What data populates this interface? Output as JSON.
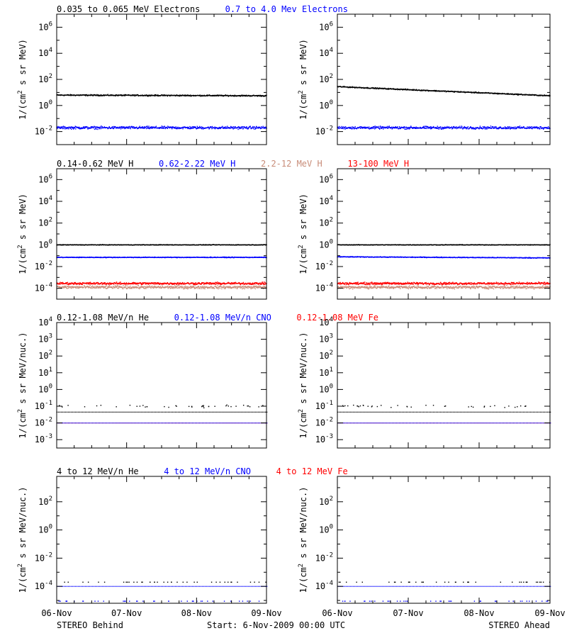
{
  "footer": {
    "left": "STEREO Behind",
    "center": "Start:  6-Nov-2009 00:00 UTC",
    "right": "STEREO Ahead"
  },
  "colors": {
    "black": "#000000",
    "blue": "#0000ff",
    "tan": "#c88c78",
    "red": "#ff0000"
  },
  "chart_data": [
    {
      "type": "scatter",
      "panel": "electrons-behind",
      "yscale": "log",
      "ylim_log10": [
        -3,
        7
      ],
      "yticks_log10": [
        -2,
        0,
        2,
        4,
        6
      ],
      "ytick_labels": [
        "10^-2",
        "10^0",
        "10^2",
        "10^4",
        "10^6"
      ],
      "ylabel": "1/(cm^2 s sr MeV)",
      "xlim_days": [
        0,
        3
      ],
      "x_tick_labels": [
        "06-Nov",
        "07-Nov",
        "08-Nov",
        "09-Nov"
      ],
      "legend": [
        {
          "text": "0.035 to 0.065 MeV Electrons",
          "color": "#000000"
        },
        {
          "text": "0.7 to 4.0 Mev Electrons",
          "color": "#0000ff"
        }
      ],
      "series": [
        {
          "color": "#000000",
          "y_log10_start": 0.8,
          "y_log10_end": 0.75,
          "scatter": 0.07
        },
        {
          "color": "#0000ff",
          "y_log10_start": -1.7,
          "y_log10_end": -1.7,
          "scatter": 0.15
        }
      ]
    },
    {
      "type": "scatter",
      "panel": "electrons-ahead",
      "yscale": "log",
      "ylim_log10": [
        -3,
        7
      ],
      "yticks_log10": [
        -2,
        0,
        2,
        4,
        6
      ],
      "ytick_labels": [
        "10^-2",
        "10^0",
        "10^2",
        "10^4",
        "10^6"
      ],
      "ylabel": "1/(cm^2 s sr MeV)",
      "xlim_days": [
        0,
        3
      ],
      "x_tick_labels": [
        "06-Nov",
        "07-Nov",
        "08-Nov",
        "09-Nov"
      ],
      "legend": [],
      "series": [
        {
          "color": "#000000",
          "y_log10_start": 1.45,
          "y_log10_end": 0.75,
          "scatter": 0.06
        },
        {
          "color": "#0000ff",
          "y_log10_start": -1.7,
          "y_log10_end": -1.7,
          "scatter": 0.15
        }
      ]
    },
    {
      "type": "scatter",
      "panel": "protons-behind",
      "yscale": "log",
      "ylim_log10": [
        -5,
        7
      ],
      "yticks_log10": [
        -4,
        -2,
        0,
        2,
        4,
        6
      ],
      "ytick_labels": [
        "10^-4",
        "10^-2",
        "10^0",
        "10^2",
        "10^4",
        "10^6"
      ],
      "ylabel": "1/(cm^2 s sr MeV)",
      "xlim_days": [
        0,
        3
      ],
      "x_tick_labels": [
        "06-Nov",
        "07-Nov",
        "08-Nov",
        "09-Nov"
      ],
      "legend": [
        {
          "text": "0.14-0.62 MeV H",
          "color": "#000000"
        },
        {
          "text": "0.62-2.22 MeV H",
          "color": "#0000ff"
        },
        {
          "text": "2.2-12 MeV H",
          "color": "#c88c78"
        },
        {
          "text": "13-100 MeV H",
          "color": "#ff0000"
        }
      ],
      "series": [
        {
          "color": "#c88c78",
          "y_log10_start": -3.9,
          "y_log10_end": -3.9,
          "scatter": 0.2
        },
        {
          "color": "#ff0000",
          "y_log10_start": -3.55,
          "y_log10_end": -3.55,
          "scatter": 0.15
        },
        {
          "color": "#0000ff",
          "y_log10_start": -1.15,
          "y_log10_end": -1.15,
          "scatter": 0.05
        },
        {
          "color": "#000000",
          "y_log10_start": 0.0,
          "y_log10_end": 0.0,
          "scatter": 0.04
        }
      ]
    },
    {
      "type": "scatter",
      "panel": "protons-ahead",
      "yscale": "log",
      "ylim_log10": [
        -5,
        7
      ],
      "yticks_log10": [
        -4,
        -2,
        0,
        2,
        4,
        6
      ],
      "ytick_labels": [
        "10^-4",
        "10^-2",
        "10^0",
        "10^2",
        "10^4",
        "10^6"
      ],
      "ylabel": "1/(cm^2 s sr MeV)",
      "xlim_days": [
        0,
        3
      ],
      "x_tick_labels": [
        "06-Nov",
        "07-Nov",
        "08-Nov",
        "09-Nov"
      ],
      "legend": [],
      "series": [
        {
          "color": "#c88c78",
          "y_log10_start": -3.9,
          "y_log10_end": -3.9,
          "scatter": 0.2
        },
        {
          "color": "#ff0000",
          "y_log10_start": -3.55,
          "y_log10_end": -3.55,
          "scatter": 0.15
        },
        {
          "color": "#0000ff",
          "y_log10_start": -1.1,
          "y_log10_end": -1.2,
          "scatter": 0.05
        },
        {
          "color": "#000000",
          "y_log10_start": 0.0,
          "y_log10_end": 0.0,
          "scatter": 0.04
        }
      ]
    },
    {
      "type": "scatter",
      "panel": "low-energy-ions-behind",
      "yscale": "log",
      "ylim_log10": [
        -3.5,
        4
      ],
      "yticks_log10": [
        -3,
        -2,
        -1,
        0,
        1,
        2,
        3,
        4
      ],
      "ytick_labels": [
        "10^-3",
        "10^-2",
        "10^-1",
        "10^0",
        "10^1",
        "10^2",
        "10^3",
        "10^4"
      ],
      "ylabel": "1/(cm^2 s sr MeV/nuc.)",
      "xlim_days": [
        0,
        3
      ],
      "x_tick_labels": [
        "06-Nov",
        "07-Nov",
        "08-Nov",
        "09-Nov"
      ],
      "legend": [
        {
          "text": "0.12-1.08 MeV/n He",
          "color": "#000000"
        },
        {
          "text": "0.12-1.08 MeV/n CNO",
          "color": "#0000ff"
        },
        {
          "text": "0.12-1.08 MeV Fe",
          "color": "#ff0000"
        }
      ],
      "series": [
        {
          "color": "#ff0000",
          "y_log10_start": -2.0,
          "y_log10_end": -2.0,
          "scatter": 0.0,
          "style": "dash"
        },
        {
          "color": "#0000ff",
          "y_log10_start": -2.0,
          "y_log10_end": -2.0,
          "scatter": 0.0,
          "style": "dash"
        },
        {
          "color": "#000000",
          "y_log10_start": -1.35,
          "y_log10_end": -1.35,
          "scatter": 0.0,
          "style": "dash"
        },
        {
          "color": "#000000",
          "y_log10_start": -1.0,
          "y_log10_end": -1.0,
          "scatter": 0.1,
          "style": "sparse"
        }
      ]
    },
    {
      "type": "scatter",
      "panel": "low-energy-ions-ahead",
      "yscale": "log",
      "ylim_log10": [
        -3.5,
        4
      ],
      "yticks_log10": [
        -3,
        -2,
        -1,
        0,
        1,
        2,
        3,
        4
      ],
      "ytick_labels": [
        "10^-3",
        "10^-2",
        "10^-1",
        "10^0",
        "10^1",
        "10^2",
        "10^3",
        "10^4"
      ],
      "ylabel": "1/(cm^2 s sr MeV/nuc.)",
      "xlim_days": [
        0,
        3
      ],
      "x_tick_labels": [
        "06-Nov",
        "07-Nov",
        "08-Nov",
        "09-Nov"
      ],
      "legend": [],
      "series": [
        {
          "color": "#ff0000",
          "y_log10_start": -2.0,
          "y_log10_end": -2.0,
          "scatter": 0.0,
          "style": "dash"
        },
        {
          "color": "#0000ff",
          "y_log10_start": -2.0,
          "y_log10_end": -2.0,
          "scatter": 0.0,
          "style": "dash"
        },
        {
          "color": "#000000",
          "y_log10_start": -1.35,
          "y_log10_end": -1.35,
          "scatter": 0.0,
          "style": "dash"
        },
        {
          "color": "#000000",
          "y_log10_start": -1.0,
          "y_log10_end": -1.0,
          "scatter": 0.1,
          "style": "sparse"
        }
      ]
    },
    {
      "type": "scatter",
      "panel": "high-energy-ions-behind",
      "yscale": "log",
      "ylim_log10": [
        -5.2,
        3.8
      ],
      "yticks_log10": [
        -4,
        -2,
        0,
        2
      ],
      "ytick_labels": [
        "10^-4",
        "10^-2",
        "10^0",
        "10^2"
      ],
      "ylabel": "1/(cm^2 s sr MeV/nuc.)",
      "xlim_days": [
        0,
        3
      ],
      "x_tick_labels": [
        "06-Nov",
        "07-Nov",
        "08-Nov",
        "09-Nov"
      ],
      "legend": [
        {
          "text": "4 to 12 MeV/n He",
          "color": "#000000"
        },
        {
          "text": "4 to 12 MeV/n CNO",
          "color": "#0000ff"
        },
        {
          "text": "4 to 12 MeV Fe",
          "color": "#ff0000"
        }
      ],
      "series": [
        {
          "color": "#0000ff",
          "y_log10_start": -4.0,
          "y_log10_end": -4.0,
          "scatter": 0.0,
          "style": "dash"
        },
        {
          "color": "#000000",
          "y_log10_start": -3.7,
          "y_log10_end": -3.7,
          "scatter": 0.0,
          "style": "sparse"
        },
        {
          "color": "#0000ff",
          "y_log10_start": -5.05,
          "y_log10_end": -5.05,
          "scatter": 0.0,
          "style": "sparse"
        }
      ]
    },
    {
      "type": "scatter",
      "panel": "high-energy-ions-ahead",
      "yscale": "log",
      "ylim_log10": [
        -5.2,
        3.8
      ],
      "yticks_log10": [
        -4,
        -2,
        0,
        2
      ],
      "ytick_labels": [
        "10^-4",
        "10^-2",
        "10^0",
        "10^2"
      ],
      "ylabel": "1/(cm^2 s sr MeV/nuc.)",
      "xlim_days": [
        0,
        3
      ],
      "x_tick_labels": [
        "06-Nov",
        "07-Nov",
        "08-Nov",
        "09-Nov"
      ],
      "legend": [],
      "series": [
        {
          "color": "#0000ff",
          "y_log10_start": -4.0,
          "y_log10_end": -4.0,
          "scatter": 0.0,
          "style": "dash"
        },
        {
          "color": "#000000",
          "y_log10_start": -3.7,
          "y_log10_end": -3.7,
          "scatter": 0.0,
          "style": "sparse"
        },
        {
          "color": "#0000ff",
          "y_log10_start": -5.05,
          "y_log10_end": -5.05,
          "scatter": 0.0,
          "style": "sparse"
        }
      ]
    }
  ]
}
